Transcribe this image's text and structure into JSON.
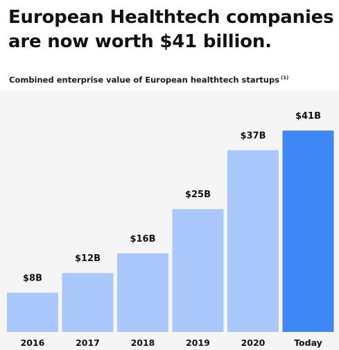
{
  "header": {
    "title_line1": "European Healthtech companies",
    "title_line2": "are now worth $41 billion.",
    "subtitle": "Combined enterprise value of European healthtech startups",
    "subtitle_note": "(1)"
  },
  "colors": {
    "bar": "#a9c7fb",
    "bar_highlight": "#3f86f6",
    "background": "#f5f5f5"
  },
  "chart_data": {
    "type": "bar",
    "title": "Combined enterprise value of European healthtech startups",
    "categories": [
      "2016",
      "2017",
      "2018",
      "2019",
      "2020",
      "Today"
    ],
    "values": [
      8,
      12,
      16,
      25,
      37,
      41
    ],
    "data_labels": [
      "$8B",
      "$12B",
      "$16B",
      "$25B",
      "$37B",
      "$41B"
    ],
    "highlight_index": 5,
    "ylim": [
      0,
      41
    ],
    "grid": false,
    "legend": "none"
  }
}
